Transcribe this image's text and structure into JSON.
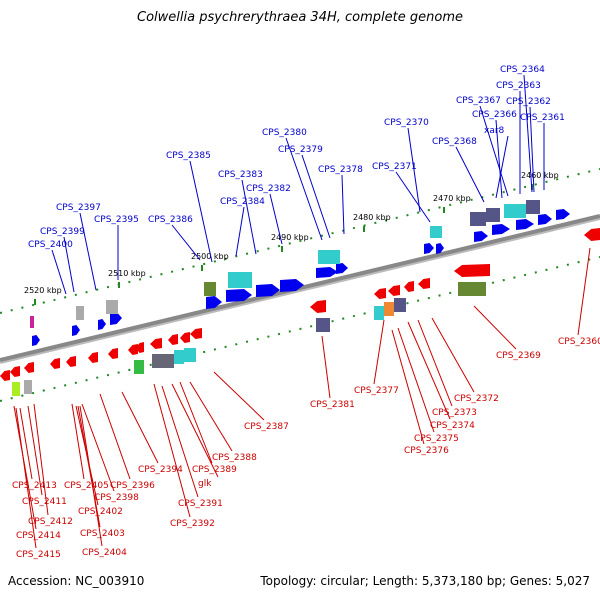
{
  "title": "Colwellia psychrerythraea 34H, complete genome",
  "footer": {
    "accession": "Accession: NC_003910",
    "info": "Topology: circular; Length: 5,373,180 bp; Genes: 5,027"
  },
  "colors": {
    "forward": "#0000ee",
    "reverse": "#ee0000",
    "teal": "#33cccc",
    "slate": "#555588",
    "olive": "#668833",
    "grey": "#aaaaaa",
    "backbone": "#888888"
  },
  "kbp_labels": [
    "2460 kbp",
    "2470 kbp",
    "2480 kbp",
    "2490 kbp",
    "2500 kbp",
    "2510 kbp",
    "2520 kbp"
  ],
  "upper_labels": [
    "CPS_2364",
    "CPS_2363",
    "CPS_2367",
    "CPS_2362",
    "CPS_2366",
    "CPS_2361",
    "xar8",
    "CPS_2370",
    "CPS_2380",
    "CPS_2368",
    "CPS_2379",
    "CPS_2385",
    "CPS_2371",
    "CPS_2378",
    "CPS_2383",
    "CPS_2382",
    "CPS_2384",
    "CPS_2397",
    "CPS_2395",
    "CPS_2386",
    "CPS_2399",
    "CPS_2400"
  ],
  "lower_labels": [
    "CPS_2360",
    "CPS_2369",
    "CPS_2377",
    "CPS_2381",
    "CPS_2372",
    "CPS_2387",
    "CPS_2373",
    "CPS_2374",
    "CPS_2375",
    "CPS_2376",
    "CPS_2388",
    "CPS_2394",
    "CPS_2389",
    "glk",
    "CPS_2396",
    "CPS_2413",
    "CPS_2405",
    "CPS_2398",
    "CPS_2391",
    "CPS_2411",
    "CPS_2402",
    "CPS_2412",
    "CPS_2392",
    "CPS_2403",
    "CPS_2414",
    "CPS_2415",
    "CPS_2404"
  ]
}
